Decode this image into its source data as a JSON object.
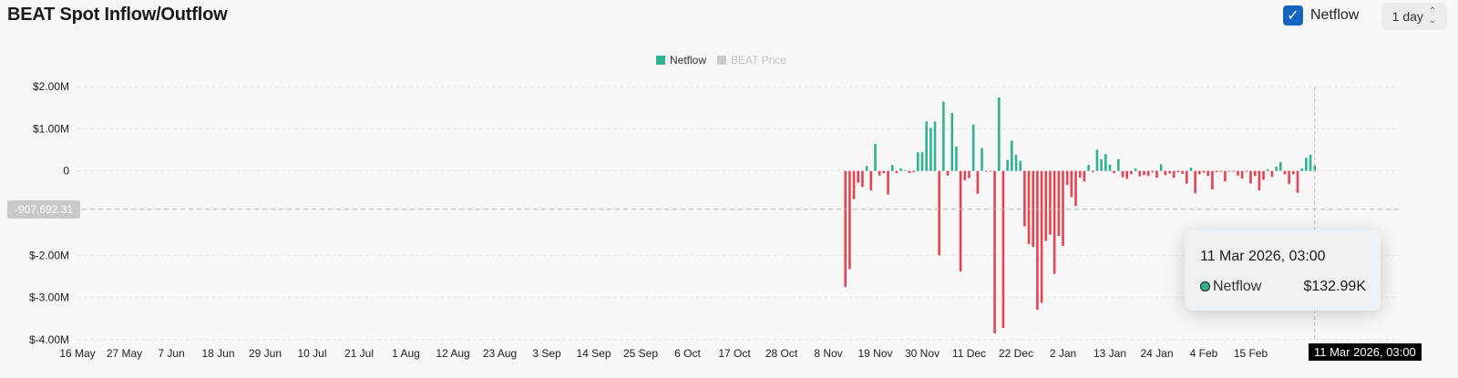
{
  "header": {
    "title": "BEAT Spot Inflow/Outflow",
    "netflow_toggle_label": "Netflow",
    "netflow_checked": true,
    "interval": "1 day"
  },
  "legend": [
    {
      "label": "Netflow",
      "color": "#2fb38f",
      "active": true
    },
    {
      "label": "BEAT Price",
      "color": "#cccccc",
      "active": false
    }
  ],
  "reference_line": {
    "label": "-907,692.31",
    "value": -907692.31
  },
  "tooltip": {
    "date": "11 Mar 2026, 03:00",
    "series": "Netflow",
    "value": "$132.99K"
  },
  "cursor_date_label": "11 Mar 2026, 03:00",
  "colors": {
    "positive": "#2fb38f",
    "negative": "#e8424f",
    "grid": "#e6e6e6",
    "axis_text": "#222222"
  },
  "chart_data": {
    "type": "bar",
    "title": "BEAT Spot Inflow/Outflow",
    "series": [
      {
        "name": "Netflow",
        "unit": "USD"
      }
    ],
    "ylim": [
      -4000000,
      2000000
    ],
    "y_ticks": [
      {
        "value": 2000000,
        "label": "$2.00M"
      },
      {
        "value": 1000000,
        "label": "$1.00M"
      },
      {
        "value": 0,
        "label": "0"
      },
      {
        "value": -2000000,
        "label": "$-2.00M"
      },
      {
        "value": -3000000,
        "label": "$-3.00M"
      },
      {
        "value": -4000000,
        "label": "$-4.00M"
      }
    ],
    "x_ticks": [
      "16 May",
      "27 May",
      "7 Jun",
      "18 Jun",
      "29 Jun",
      "10 Jul",
      "21 Jul",
      "1 Aug",
      "12 Aug",
      "23 Aug",
      "3 Sep",
      "14 Sep",
      "25 Sep",
      "6 Oct",
      "17 Oct",
      "28 Oct",
      "8 Nov",
      "19 Nov",
      "30 Nov",
      "11 Dec",
      "22 Dec",
      "2 Jan",
      "13 Jan",
      "24 Jan",
      "4 Feb",
      "15 Feb"
    ],
    "x_start": "2025-05-16",
    "grid": true,
    "data_start": "2025-11-12",
    "values": [
      -2750000,
      -2330000,
      -670000,
      -280000,
      -380000,
      120000,
      -460000,
      640000,
      -110000,
      -50000,
      -560000,
      140000,
      -50000,
      60000,
      20000,
      -50000,
      -30000,
      440000,
      440000,
      1170000,
      1020000,
      1170000,
      -2000000,
      1640000,
      -110000,
      1370000,
      580000,
      -2380000,
      -220000,
      -170000,
      1100000,
      -540000,
      540000,
      -20000,
      -10000,
      -3850000,
      1740000,
      -3720000,
      260000,
      720000,
      380000,
      240000,
      -1310000,
      -1730000,
      -1800000,
      -3290000,
      -3130000,
      -1660000,
      -1510000,
      -2440000,
      -1540000,
      -1780000,
      -330000,
      -620000,
      -830000,
      -160000,
      -250000,
      140000,
      -30000,
      500000,
      280000,
      400000,
      150000,
      -50000,
      280000,
      -150000,
      -190000,
      -80000,
      60000,
      -130000,
      -100000,
      -120000,
      -30000,
      -160000,
      160000,
      -100000,
      -60000,
      -160000,
      -30000,
      -70000,
      -300000,
      80000,
      -530000,
      -80000,
      -40000,
      -120000,
      -440000,
      -30000,
      -20000,
      -250000,
      -10000,
      -10000,
      -110000,
      -180000,
      -20000,
      -300000,
      -120000,
      -460000,
      -210000,
      40000,
      -140000,
      100000,
      210000,
      -80000,
      -310000,
      -80000,
      -520000,
      60000,
      310000,
      380000,
      132990
    ]
  }
}
